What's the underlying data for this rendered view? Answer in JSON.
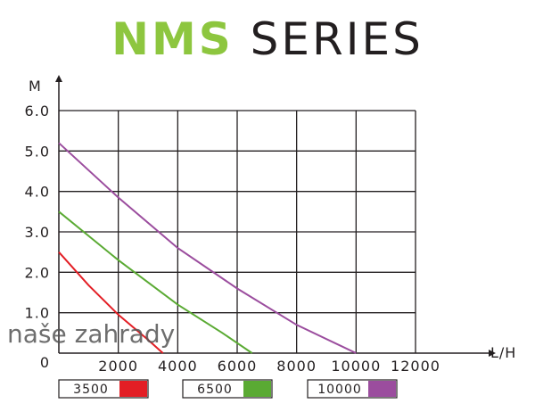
{
  "title": {
    "brand": "NMS",
    "rest": " SERIES"
  },
  "watermark": "naše zahrady",
  "chart_data": {
    "type": "line",
    "title": "NMS SERIES",
    "xlabel": "L/H",
    "ylabel": "M",
    "xlim": [
      0,
      12000
    ],
    "ylim": [
      0,
      6
    ],
    "grid": true,
    "x_ticks": [
      "2000",
      "4000",
      "6000",
      "8000",
      "10000",
      "12000"
    ],
    "y_ticks": [
      "0",
      "1.0",
      "2.0",
      "3.0",
      "4.0",
      "5.0",
      "6.0"
    ],
    "legend_position": "bottom",
    "series": [
      {
        "name": "3500",
        "color": "#e31e25",
        "points": [
          [
            0,
            2.5
          ],
          [
            1000,
            1.68
          ],
          [
            2000,
            0.95
          ],
          [
            3000,
            0.33
          ],
          [
            3500,
            0
          ]
        ]
      },
      {
        "name": "6500",
        "color": "#5aaa33",
        "points": [
          [
            0,
            3.5
          ],
          [
            2000,
            2.3
          ],
          [
            4000,
            1.2
          ],
          [
            5500,
            0.5
          ],
          [
            6500,
            0
          ]
        ]
      },
      {
        "name": "10000",
        "color": "#9b4d9e",
        "points": [
          [
            0,
            5.2
          ],
          [
            2000,
            3.85
          ],
          [
            4000,
            2.6
          ],
          [
            6000,
            1.6
          ],
          [
            8000,
            0.7
          ],
          [
            10000,
            0
          ]
        ]
      }
    ]
  }
}
